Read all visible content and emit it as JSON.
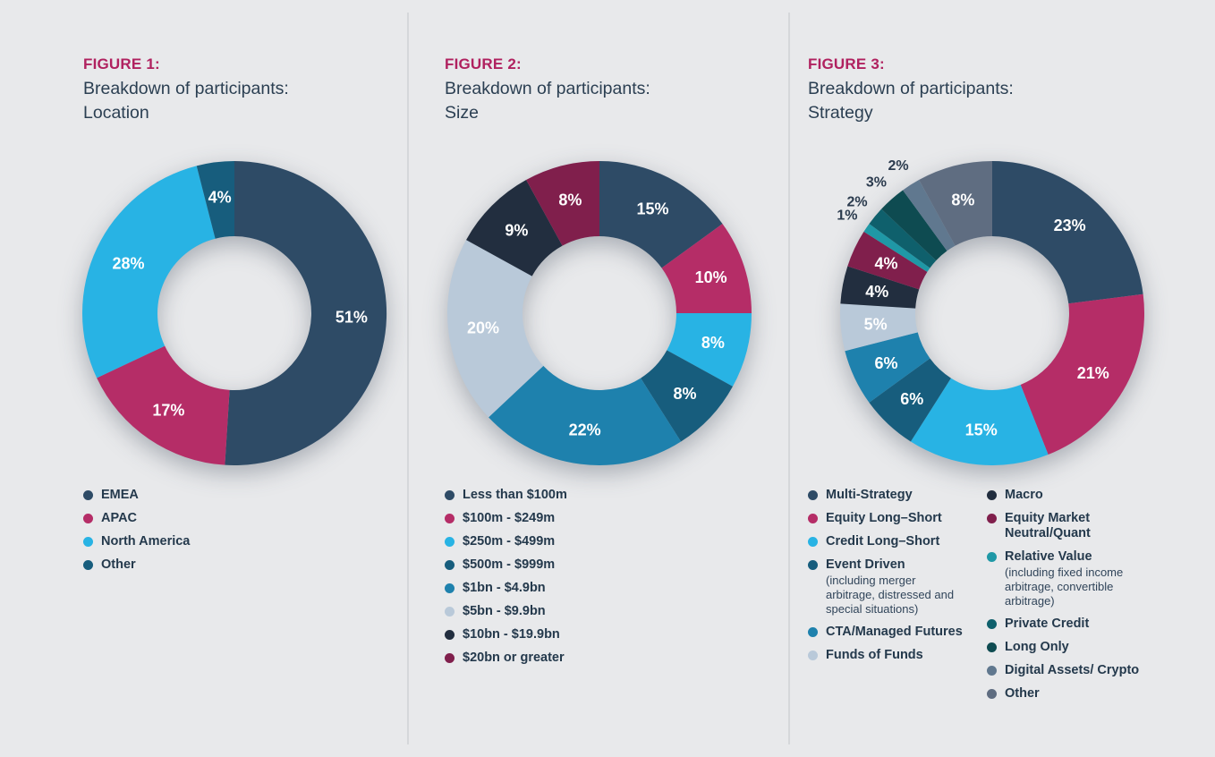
{
  "colors": {
    "background": "#e8e9eb",
    "divider": "#d5d7da",
    "figure_label": "#b0215f",
    "title_text": "#2b3f52",
    "legend_text": "#24394c",
    "value_label_inside": "#ffffff",
    "value_label_outside": "#2b3b4e"
  },
  "figures": [
    {
      "label": "FIGURE 1:",
      "title_lines": [
        "Breakdown of participants:",
        "Location"
      ]
    },
    {
      "label": "FIGURE 2:",
      "title_lines": [
        "Breakdown of participants:",
        "Size"
      ]
    },
    {
      "label": "FIGURE 3:",
      "title_lines": [
        "Breakdown of participants:",
        "Strategy"
      ]
    }
  ],
  "chart_data": [
    {
      "type": "pie",
      "donut": true,
      "title": "Breakdown of participants: Location",
      "unit": "%",
      "start_angle_deg": 0,
      "direction": "clockwise",
      "legend_position": "bottom",
      "legend_columns": 1,
      "segments": [
        {
          "label": "EMEA",
          "value": 51,
          "color": "#2e4b66"
        },
        {
          "label": "APAC",
          "value": 17,
          "color": "#b52d67"
        },
        {
          "label": "North America",
          "value": 28,
          "color": "#28b3e4"
        },
        {
          "label": "Other",
          "value": 4,
          "color": "#175d7d"
        }
      ]
    },
    {
      "type": "pie",
      "donut": true,
      "title": "Breakdown of participants: Size",
      "unit": "%",
      "start_angle_deg": 0,
      "direction": "clockwise",
      "legend_position": "bottom",
      "legend_columns": 1,
      "segments": [
        {
          "label": "Less than $100m",
          "value": 15,
          "color": "#2e4b66"
        },
        {
          "label": "$100m - $249m",
          "value": 10,
          "color": "#b52d67"
        },
        {
          "label": "$250m - $499m",
          "value": 8,
          "color": "#28b3e4"
        },
        {
          "label": "$500m - $999m",
          "value": 8,
          "color": "#175d7d"
        },
        {
          "label": "$1bn - $4.9bn",
          "value": 22,
          "color": "#1e81ad"
        },
        {
          "label": "$5bn - $9.9bn",
          "value": 20,
          "color": "#b9c9d9"
        },
        {
          "label": "$10bn - $19.9bn",
          "value": 9,
          "color": "#222e3f"
        },
        {
          "label": "$20bn or greater",
          "value": 8,
          "color": "#801f4c"
        }
      ]
    },
    {
      "type": "pie",
      "donut": true,
      "title": "Breakdown of participants: Strategy",
      "unit": "%",
      "start_angle_deg": 0,
      "direction": "clockwise",
      "legend_position": "bottom",
      "legend_columns": 2,
      "legend_split": 6,
      "segments": [
        {
          "label": "Multi-Strategy",
          "value": 23,
          "color": "#2e4b66"
        },
        {
          "label": "Equity Long–Short",
          "value": 21,
          "color": "#b52d67"
        },
        {
          "label": "Credit Long–Short",
          "value": 15,
          "color": "#28b3e4"
        },
        {
          "label": "Event Driven",
          "value": 6,
          "color": "#175d7d",
          "sublabel": "(including merger arbitrage, distressed and special situations)"
        },
        {
          "label": "CTA/Managed Futures",
          "value": 6,
          "color": "#1e81ad"
        },
        {
          "label": "Funds of Funds",
          "value": 5,
          "color": "#b9c9d9"
        },
        {
          "label": "Macro",
          "value": 4,
          "color": "#222e3f"
        },
        {
          "label": "Equity Market Neutral/Quant",
          "value": 4,
          "color": "#801f4c"
        },
        {
          "label": "Relative Value",
          "value": 1,
          "color": "#1f98a6",
          "sublabel": "(including fixed income arbitrage, convertible arbitrage)"
        },
        {
          "label": "Private Credit",
          "value": 2,
          "color": "#0f606c"
        },
        {
          "label": "Long Only",
          "value": 3,
          "color": "#0e4b51"
        },
        {
          "label": "Digital Assets/ Crypto",
          "value": 2,
          "color": "#60788f"
        },
        {
          "label": "Other",
          "value": 8,
          "color": "#5f6d81"
        }
      ]
    }
  ]
}
